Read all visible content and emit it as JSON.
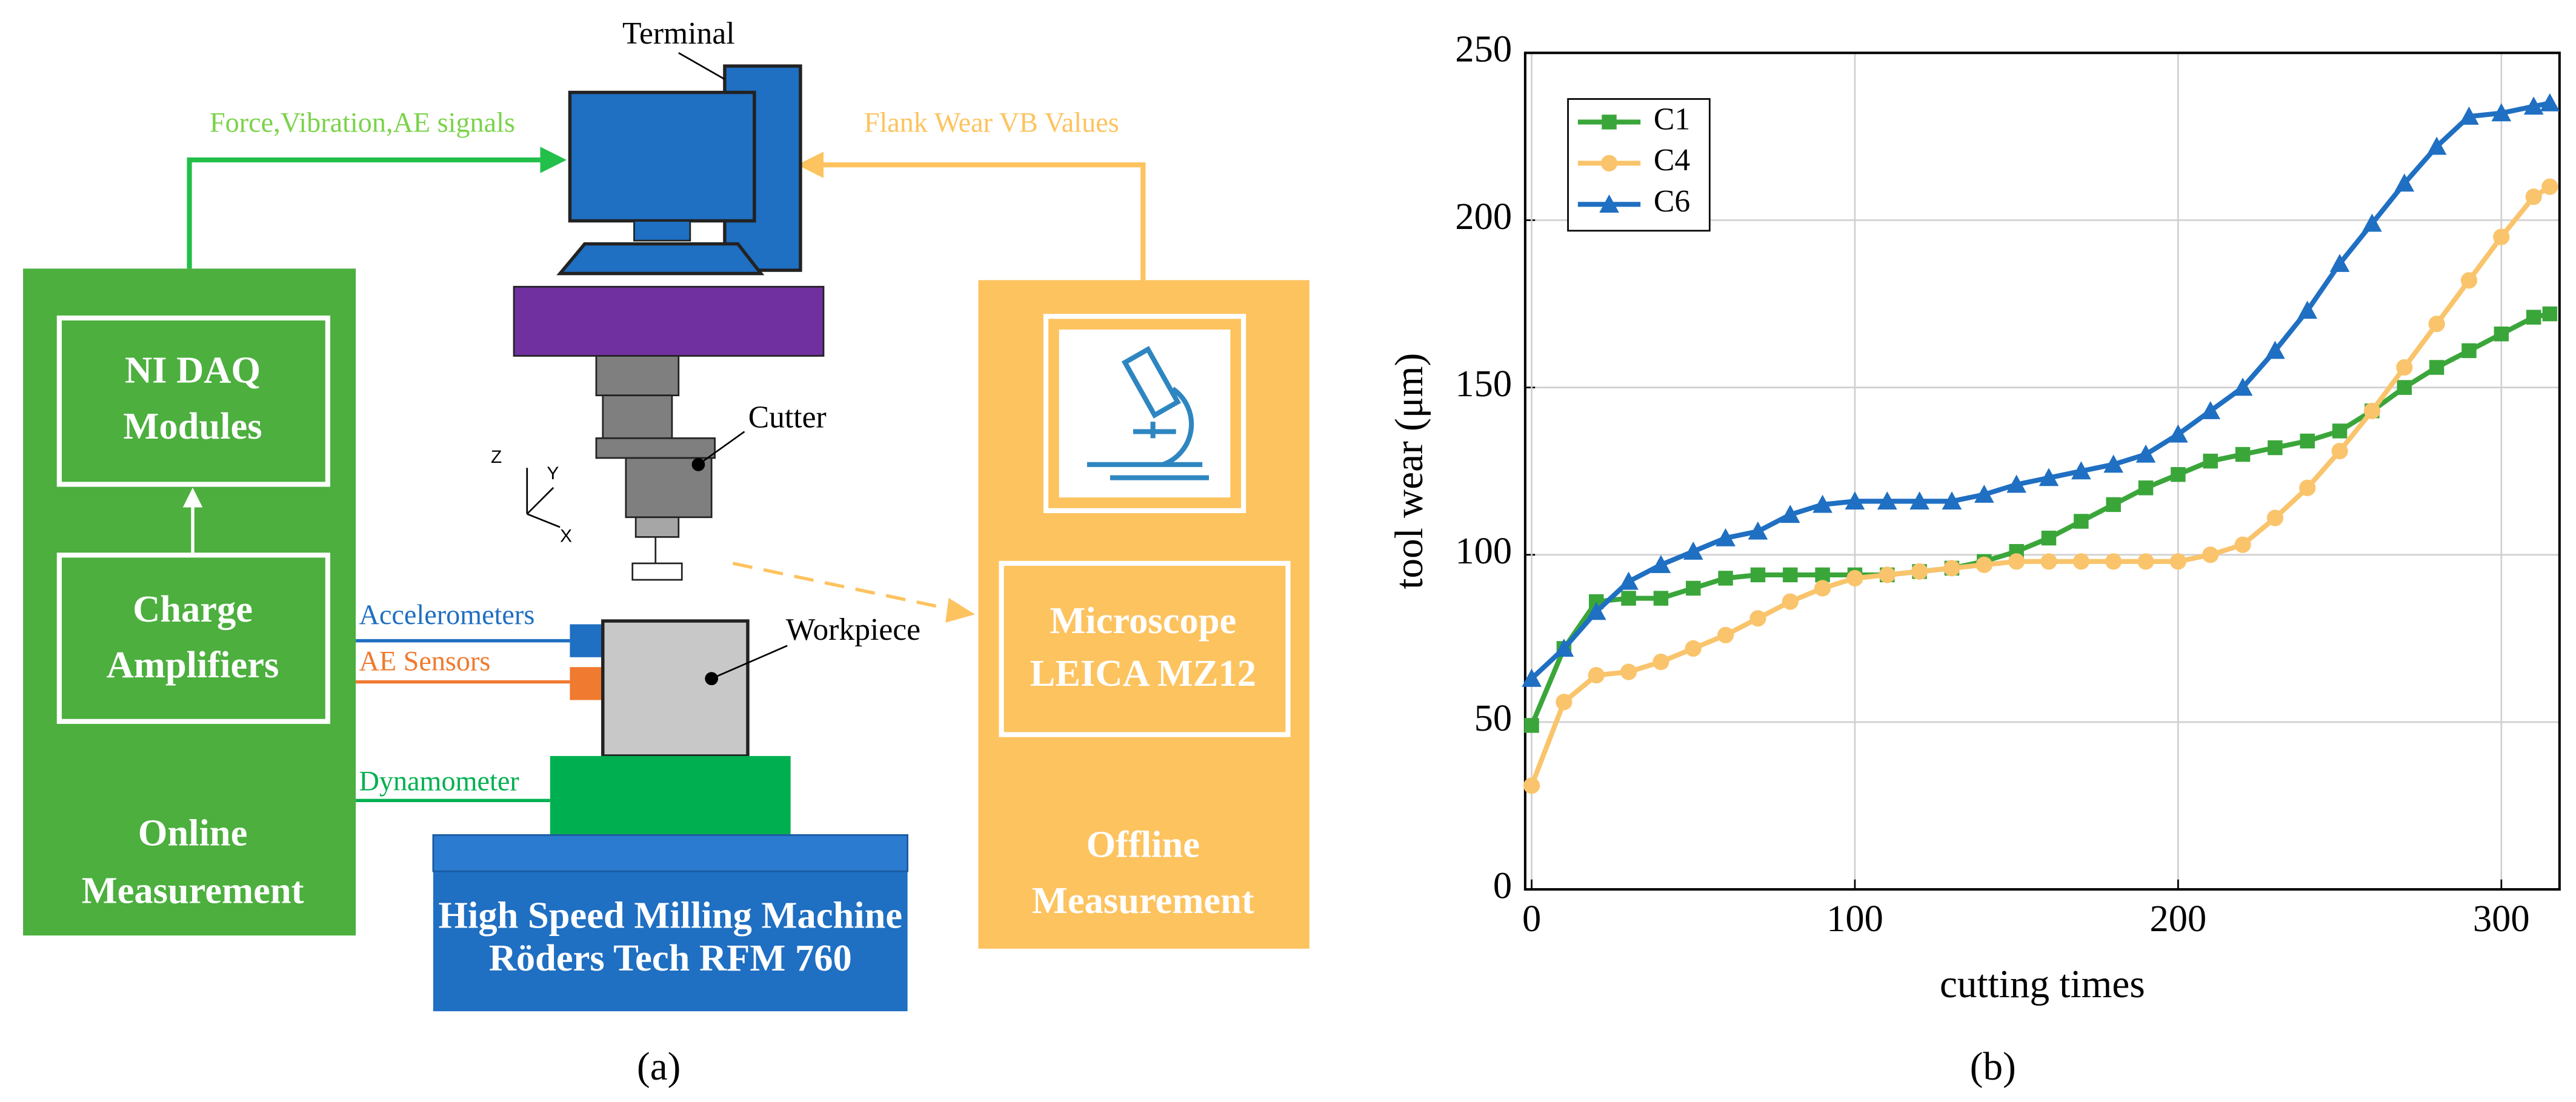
{
  "diagram": {
    "terminal": "Terminal",
    "signals": "Force,Vibration,AE signals",
    "flank": "Flank Wear VB Values",
    "daq": [
      "NI DAQ",
      "Modules"
    ],
    "amp": [
      "Charge",
      "Amplifiers"
    ],
    "online": [
      "Online",
      "Measurement"
    ],
    "microscope": [
      "Microscope",
      "LEICA MZ12"
    ],
    "offline": [
      "Offline",
      "Measurement"
    ],
    "cutter": "Cutter",
    "workpiece": "Workpiece",
    "accelerometers": "Accelerometers",
    "ae": "AE Sensors",
    "dynamometer": "Dynamometer",
    "machine": [
      "High Speed Milling Machine",
      "Röders Tech RFM 760"
    ],
    "axes": [
      "Z",
      "Y",
      "X"
    ],
    "panel": "(a)"
  },
  "chart_data": {
    "type": "line",
    "panel": "(b)",
    "x_label": "cutting times",
    "y_label": "tool wear (μm)",
    "x": [
      0,
      10,
      20,
      30,
      40,
      50,
      60,
      70,
      80,
      90,
      100,
      110,
      120,
      130,
      140,
      150,
      160,
      170,
      180,
      190,
      200,
      210,
      220,
      230,
      240,
      250,
      260,
      270,
      280,
      290,
      300,
      310,
      315
    ],
    "series": [
      {
        "name": "C1",
        "color": "#3aa63a",
        "marker": "square",
        "values": [
          49,
          72,
          86,
          87,
          87,
          90,
          93,
          94,
          94,
          94,
          94,
          94,
          95,
          96,
          98,
          101,
          105,
          110,
          115,
          120,
          124,
          128,
          130,
          132,
          134,
          137,
          143,
          150,
          156,
          161,
          166,
          171,
          172
        ]
      },
      {
        "name": "C4",
        "color": "#f9c46b",
        "marker": "circle",
        "values": [
          31,
          56,
          64,
          65,
          68,
          72,
          76,
          81,
          86,
          90,
          93,
          94,
          95,
          96,
          97,
          98,
          98,
          98,
          98,
          98,
          98,
          100,
          103,
          111,
          120,
          131,
          143,
          156,
          169,
          182,
          195,
          207,
          210
        ]
      },
      {
        "name": "C6",
        "color": "#1f6fc2",
        "marker": "triangle",
        "values": [
          63,
          72,
          83,
          92,
          97,
          101,
          105,
          107,
          112,
          115,
          116,
          116,
          116,
          116,
          118,
          121,
          123,
          125,
          127,
          130,
          136,
          143,
          150,
          161,
          173,
          187,
          199,
          211,
          222,
          231,
          232,
          234,
          235
        ]
      }
    ],
    "xlim": [
      -2,
      318
    ],
    "ylim": [
      0,
      250
    ],
    "xticks": [
      0,
      100,
      200,
      300
    ],
    "yticks": [
      0,
      50,
      100,
      150,
      200,
      250
    ],
    "grid": true,
    "legend": "upper left"
  }
}
